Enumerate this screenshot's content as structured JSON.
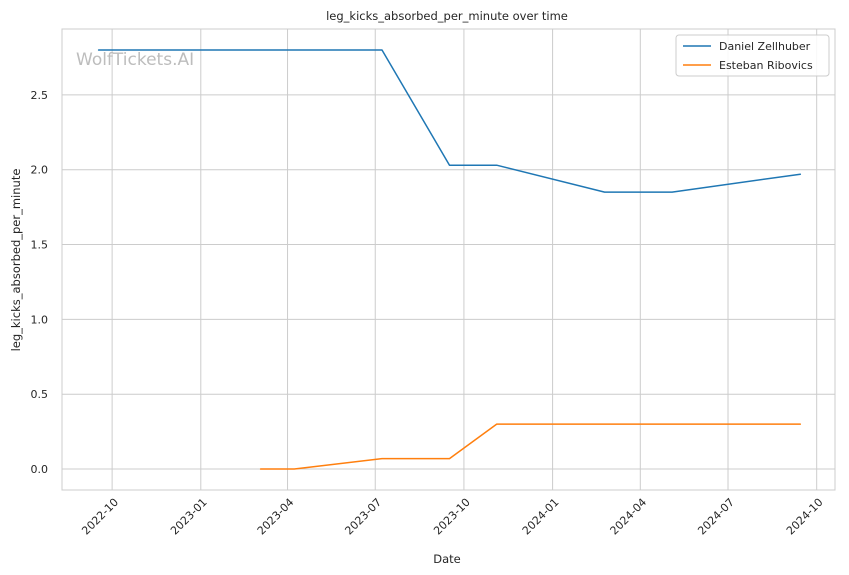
{
  "chart_data": {
    "type": "line",
    "title": "leg_kicks_absorbed_per_minute over time",
    "xlabel": "Date",
    "ylabel": "leg_kicks_absorbed_per_minute",
    "watermark": "WolfTickets.AI",
    "xlim": [
      "2022-08-10",
      "2024-10-20"
    ],
    "ylim": [
      -0.14,
      2.94
    ],
    "x_ticks": [
      "2022-10-01",
      "2023-01-01",
      "2023-04-01",
      "2023-07-01",
      "2023-10-01",
      "2024-01-01",
      "2024-04-01",
      "2024-07-01",
      "2024-10-01"
    ],
    "x_tick_labels": [
      "2022-10",
      "2023-01",
      "2023-04",
      "2023-07",
      "2023-10",
      "2024-01",
      "2024-04",
      "2024-07",
      "2024-10"
    ],
    "y_ticks": [
      0.0,
      0.5,
      1.0,
      1.5,
      2.0,
      2.5
    ],
    "y_tick_labels": [
      "0.0",
      "0.5",
      "1.0",
      "1.5",
      "2.0",
      "2.5"
    ],
    "grid": true,
    "legend_position": "top-right",
    "series": [
      {
        "name": "Daniel Zellhuber",
        "color": "#1f77b4",
        "points": [
          {
            "x": "2022-09-17",
            "y": 2.8
          },
          {
            "x": "2023-07-08",
            "y": 2.8
          },
          {
            "x": "2023-09-16",
            "y": 2.03
          },
          {
            "x": "2023-11-04",
            "y": 2.03
          },
          {
            "x": "2024-02-24",
            "y": 1.85
          },
          {
            "x": "2024-05-04",
            "y": 1.85
          },
          {
            "x": "2024-09-14",
            "y": 1.97
          }
        ]
      },
      {
        "name": "Esteban Ribovics",
        "color": "#ff7f0e",
        "points": [
          {
            "x": "2023-03-04",
            "y": 0.0
          },
          {
            "x": "2023-04-08",
            "y": 0.0
          },
          {
            "x": "2023-07-08",
            "y": 0.07
          },
          {
            "x": "2023-09-16",
            "y": 0.07
          },
          {
            "x": "2023-11-04",
            "y": 0.3
          },
          {
            "x": "2024-05-04",
            "y": 0.3
          },
          {
            "x": "2024-09-14",
            "y": 0.3
          }
        ]
      }
    ]
  }
}
